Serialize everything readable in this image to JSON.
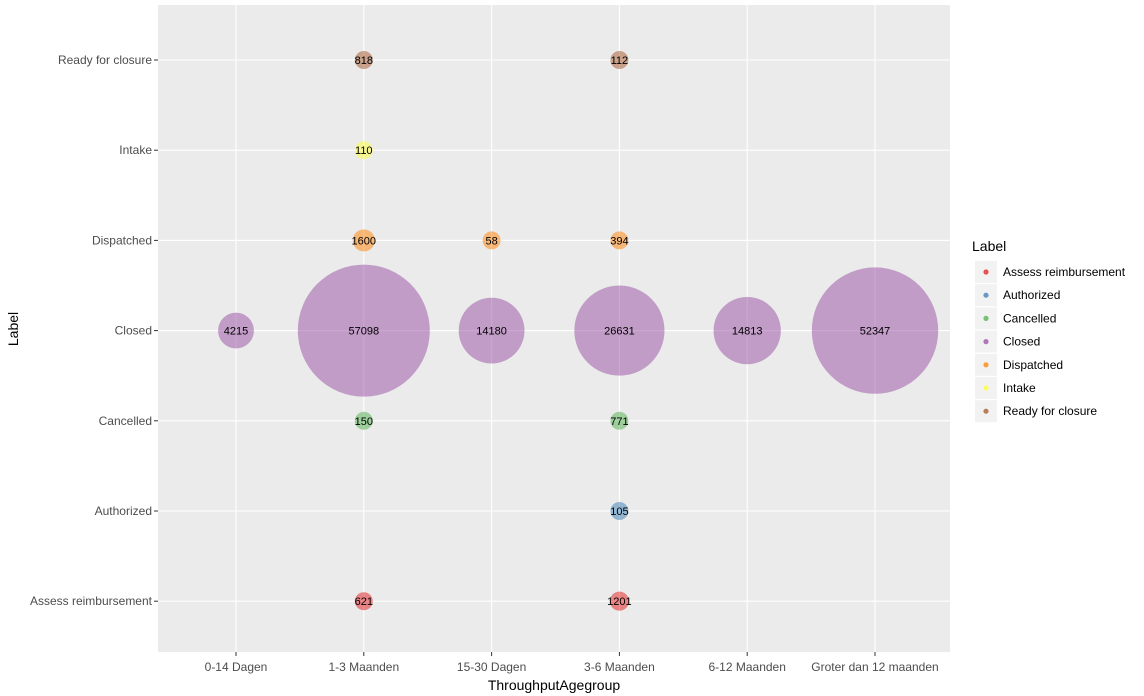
{
  "chart_data": {
    "type": "scatter",
    "xlabel": "ThroughputAgegroup",
    "ylabel": "Label",
    "x_categories": [
      "0-14 Dagen",
      "1-3 Maanden",
      "15-30 Dagen",
      "3-6 Maanden",
      "6-12 Maanden",
      "Groter dan 12 maanden"
    ],
    "y_categories": [
      "Assess reimbursement",
      "Authorized",
      "Cancelled",
      "Closed",
      "Dispatched",
      "Intake",
      "Ready for closure"
    ],
    "legend": {
      "title": "Label",
      "placement": "right",
      "entries": [
        "Assess reimbursement",
        "Authorized",
        "Cancelled",
        "Closed",
        "Dispatched",
        "Intake",
        "Ready for closure"
      ]
    },
    "colors": {
      "Assess reimbursement": "#e41a1c",
      "Authorized": "#377eb8",
      "Cancelled": "#4daf4a",
      "Closed": "#984ea3",
      "Dispatched": "#ff7f00",
      "Intake": "#ffff33",
      "Ready for closure": "#a65628"
    },
    "grid": true,
    "points": [
      {
        "x": "1-3 Maanden",
        "y": "Ready for closure",
        "size": 818,
        "label": "818"
      },
      {
        "x": "3-6 Maanden",
        "y": "Ready for closure",
        "size": 112,
        "label": "112"
      },
      {
        "x": "1-3 Maanden",
        "y": "Intake",
        "size": 110,
        "label": "110"
      },
      {
        "x": "1-3 Maanden",
        "y": "Dispatched",
        "size": 1600,
        "label": "1600"
      },
      {
        "x": "15-30 Dagen",
        "y": "Dispatched",
        "size": 58,
        "label": "58"
      },
      {
        "x": "3-6 Maanden",
        "y": "Dispatched",
        "size": 394,
        "label": "394"
      },
      {
        "x": "0-14 Dagen",
        "y": "Closed",
        "size": 4215,
        "label": "4215"
      },
      {
        "x": "1-3 Maanden",
        "y": "Closed",
        "size": 57098,
        "label": "57098"
      },
      {
        "x": "15-30 Dagen",
        "y": "Closed",
        "size": 14180,
        "label": "14180"
      },
      {
        "x": "3-6 Maanden",
        "y": "Closed",
        "size": 26631,
        "label": "26631"
      },
      {
        "x": "6-12 Maanden",
        "y": "Closed",
        "size": 14813,
        "label": "14813"
      },
      {
        "x": "Groter dan 12 maanden",
        "y": "Closed",
        "size": 52347,
        "label": "52347"
      },
      {
        "x": "1-3 Maanden",
        "y": "Cancelled",
        "size": 150,
        "label": "150"
      },
      {
        "x": "3-6 Maanden",
        "y": "Cancelled",
        "size": 771,
        "label": "771"
      },
      {
        "x": "3-6 Maanden",
        "y": "Authorized",
        "size": 105,
        "label": "105"
      },
      {
        "x": "1-3 Maanden",
        "y": "Assess reimbursement",
        "size": 621,
        "label": "621"
      },
      {
        "x": "3-6 Maanden",
        "y": "Assess reimbursement",
        "size": 1201,
        "label": "1201"
      }
    ]
  }
}
